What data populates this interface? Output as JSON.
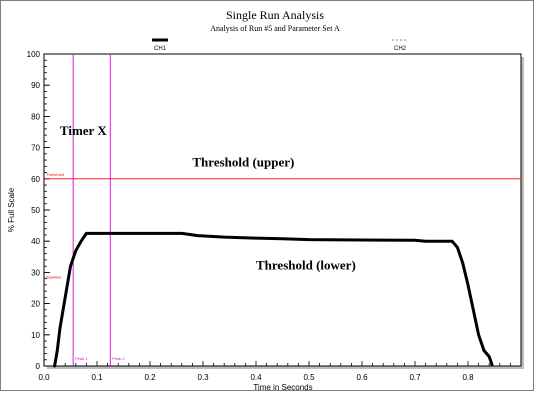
{
  "chart_data": {
    "type": "line",
    "title": "Single Run Analysis",
    "subtitle": "Analysis of Run #5 and Parameter Set A",
    "xlabel": "Time in Seconds",
    "ylabel": "% Full Scale",
    "xlim": [
      0.0,
      0.9
    ],
    "ylim": [
      0,
      100
    ],
    "xticks": [
      0.0,
      0.1,
      0.2,
      0.3,
      0.4,
      0.5,
      0.6,
      0.7,
      0.8
    ],
    "xtick_labels": [
      "0.0",
      "0.1",
      "0.2",
      "0.3",
      "0.4",
      "0.5",
      "0.6",
      "0.7",
      "0.8"
    ],
    "yticks": [
      0,
      10,
      20,
      30,
      40,
      50,
      60,
      70,
      80,
      90,
      100
    ],
    "ytick_labels": [
      "0",
      "10",
      "20",
      "30",
      "40",
      "50",
      "60",
      "70",
      "80",
      "90",
      "100"
    ],
    "grid": false,
    "legend": [
      {
        "name": "CH1",
        "style": "solid",
        "color": "#000000"
      },
      {
        "name": "CH2",
        "style": "dashed",
        "color": "#808080"
      }
    ],
    "series": [
      {
        "name": "CH1",
        "color": "#000000",
        "points": [
          [
            0.02,
            0
          ],
          [
            0.025,
            5
          ],
          [
            0.03,
            12
          ],
          [
            0.04,
            22
          ],
          [
            0.05,
            32
          ],
          [
            0.06,
            37
          ],
          [
            0.07,
            40
          ],
          [
            0.08,
            42.5
          ],
          [
            0.1,
            42.5
          ],
          [
            0.2,
            42.5
          ],
          [
            0.26,
            42.5
          ],
          [
            0.29,
            41.8
          ],
          [
            0.34,
            41.3
          ],
          [
            0.4,
            41.0
          ],
          [
            0.45,
            40.8
          ],
          [
            0.5,
            40.5
          ],
          [
            0.6,
            40.4
          ],
          [
            0.7,
            40.3
          ],
          [
            0.72,
            40.0
          ],
          [
            0.77,
            40.0
          ],
          [
            0.78,
            38
          ],
          [
            0.79,
            33
          ],
          [
            0.8,
            26
          ],
          [
            0.81,
            18
          ],
          [
            0.82,
            10
          ],
          [
            0.83,
            5
          ],
          [
            0.84,
            3
          ],
          [
            0.845,
            0.5
          ]
        ]
      }
    ],
    "threshold": {
      "label": "Threshold",
      "value": 60,
      "color": "#ff0000"
    },
    "markers": [
      {
        "label": "Peak 1",
        "x": 0.055,
        "color": "#dd00dd"
      },
      {
        "label": "Peak 2",
        "x": 0.125,
        "color": "#dd00dd"
      }
    ],
    "annotations": [
      {
        "text": "Timer X",
        "x": 0.03,
        "y": 74
      },
      {
        "text": "Threshold (upper)",
        "x": 0.28,
        "y": 64
      },
      {
        "text": "Threshold (lower)",
        "x": 0.4,
        "y": 31
      }
    ],
    "side_label": {
      "text": "Baseline",
      "y": 28,
      "color": "#ff0000"
    }
  }
}
